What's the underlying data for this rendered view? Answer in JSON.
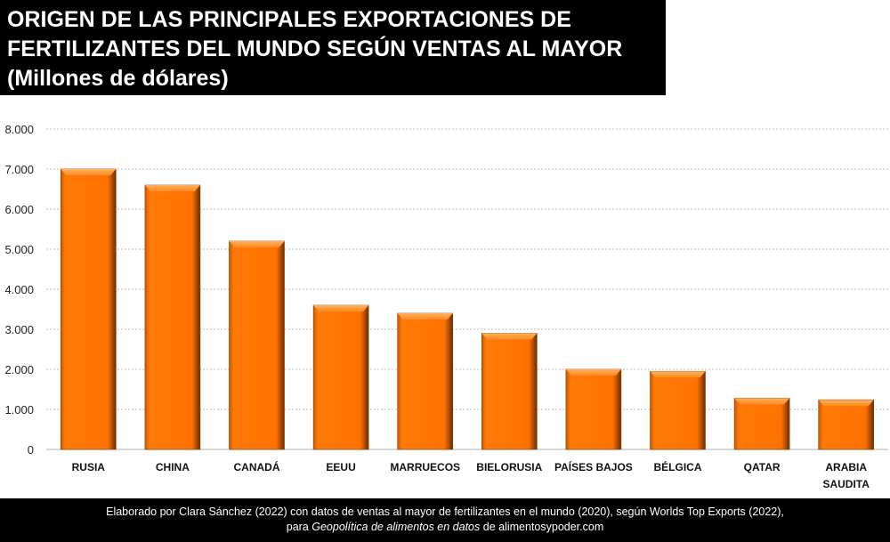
{
  "title_lines": [
    "ORIGEN DE LAS PRINCIPALES EXPORTACIONES DE",
    "FERTILIZANTES DEL MUNDO SEGÚN VENTAS AL MAYOR",
    "(Millones de dólares)"
  ],
  "footer": {
    "line1": "Elaborado por Clara Sánchez (2022) con datos de ventas al mayor de fertilizantes en el mundo (2020), según Worlds Top Exports (2022),",
    "line2_pre": "para ",
    "line2_italic": "Geopolítica de alimentos en datos",
    "line2_post": " de alimentosypoder.com"
  },
  "colors": {
    "bar": "#ff7400",
    "bar_edge": "#8a3c00",
    "grid": "#bdbdbd"
  },
  "chart_data": {
    "type": "bar",
    "title": "ORIGEN DE LAS PRINCIPALES EXPORTACIONES DE FERTILIZANTES DEL MUNDO SEGÚN VENTAS AL MAYOR (Millones de dólares)",
    "categories": [
      "RUSIA",
      "CHINA",
      "CANADÁ",
      "EEUU",
      "MARRUECOS",
      "BIELORUSIA",
      "PAÍSES BAJOS",
      "BÉLGICA",
      "QATAR",
      "ARABIA SAUDITA"
    ],
    "values": [
      7000,
      6600,
      5200,
      3600,
      3400,
      2900,
      2000,
      1950,
      1280,
      1240
    ],
    "ylim": [
      0,
      8000
    ],
    "yticks": [
      0,
      1000,
      2000,
      3000,
      4000,
      5000,
      6000,
      7000,
      8000
    ],
    "ytick_labels": [
      "0",
      "1.000",
      "2.000",
      "3.000",
      "4.000",
      "5.000",
      "6.000",
      "7.000",
      "8.000"
    ],
    "grid": true,
    "xlabel": "",
    "ylabel": ""
  }
}
